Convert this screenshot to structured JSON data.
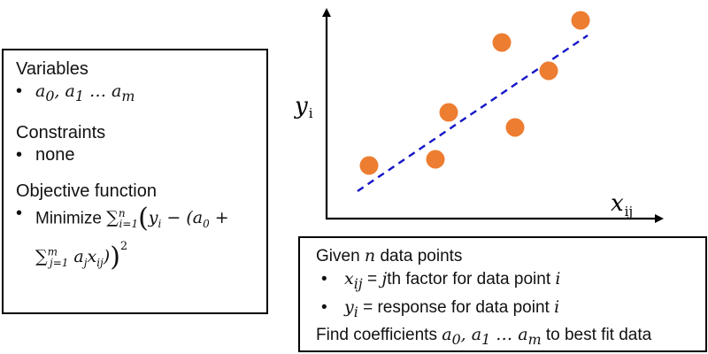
{
  "model_box": {
    "variables_heading": "Variables",
    "variables_item": "a0, a1 … am",
    "constraints_heading": "Constraints",
    "constraints_item": "none",
    "objective_heading": "Objective function",
    "objective_prefix": "Minimize",
    "objective_formula": "Σ_{i=1}^{n} ( y_i − ( a_0 + Σ_{j=1}^{m} a_j x_{ij} ) )^2"
  },
  "info_box": {
    "line1_prefix": "Given",
    "line1_var": "n",
    "line1_suffix": "data points",
    "bullet1_var": "x_ij",
    "bullet1_text": "= jth factor for data point i",
    "bullet2_var": "y_i",
    "bullet2_text": "= response for data point i",
    "line4": "Find coefficients a0, a1 … am to best fit data"
  },
  "plot": {
    "y_axis_label": "y",
    "y_axis_sub": "i",
    "x_axis_label": "x",
    "x_axis_sub": "ij",
    "point_color": "#ED7D31",
    "line_color": "#1515C8",
    "line_style": "dashed"
  }
}
